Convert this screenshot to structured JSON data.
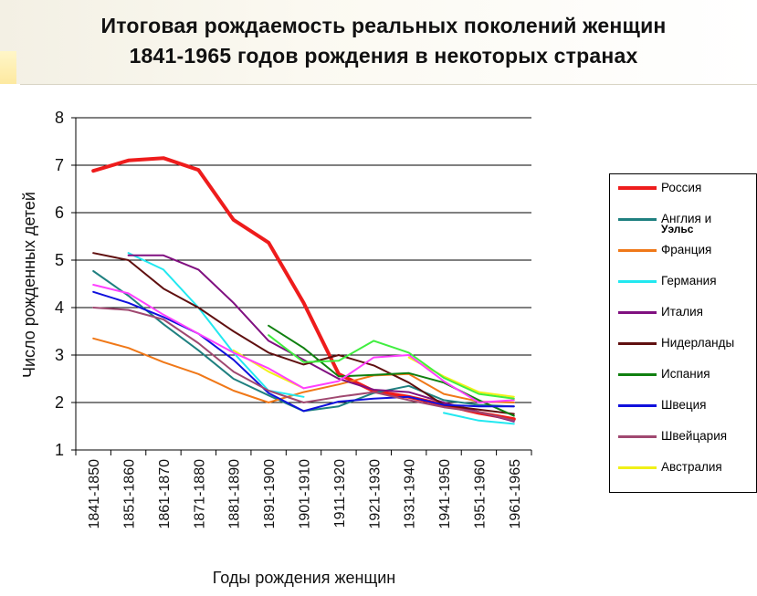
{
  "title": {
    "line1": "Итоговая рождаемость реальных поколений женщин",
    "line2": "1841-1965 годов рождения в некоторых странах"
  },
  "chart_data": {
    "type": "line",
    "title": "Итоговая рождаемость реальных поколений женщин 1841-1965 годов рождения в некоторых странах",
    "xlabel": "Годы рождения женщин",
    "ylabel": "Число рожденных детей",
    "ylim": [
      1,
      8
    ],
    "yticks": [
      1,
      2,
      3,
      4,
      5,
      6,
      7,
      8
    ],
    "grid": true,
    "legend_position": "right",
    "categories": [
      "1841-1850",
      "1851-1860",
      "1861-1870",
      "1871-1880",
      "1881-1890",
      "1891-1900",
      "1901-1910",
      "1911-1920",
      "1921-1930",
      "1931-1940",
      "1941-1950",
      "1951-1960",
      "1961-1965"
    ],
    "series": [
      {
        "name": "Россия",
        "color": "#ee1c1c",
        "width": 4,
        "values": [
          6.88,
          7.1,
          7.15,
          6.9,
          5.85,
          5.37,
          4.1,
          2.6,
          2.24,
          2.12,
          1.95,
          1.78,
          1.65
        ]
      },
      {
        "name": "Англия и",
        "name2": "Уэльс",
        "color": "#1f8080",
        "width": 2,
        "values": [
          4.77,
          4.25,
          3.65,
          3.1,
          2.5,
          2.15,
          1.82,
          1.92,
          2.2,
          2.35,
          2.05,
          1.95,
          1.92
        ]
      },
      {
        "name": "Франция",
        "color": "#f07818",
        "width": 2,
        "values": [
          3.35,
          3.15,
          2.85,
          2.6,
          2.25,
          2.0,
          2.22,
          2.38,
          2.57,
          2.6,
          2.18,
          2.02,
          2.0
        ]
      },
      {
        "name": "Германия",
        "color": "#22e8f0",
        "width": 2,
        "values": [
          null,
          5.15,
          4.8,
          4.0,
          3.05,
          2.25,
          2.12,
          null,
          null,
          null,
          1.78,
          1.62,
          1.55
        ]
      },
      {
        "name": "Италия",
        "color": "#801080",
        "width": 2,
        "values": [
          null,
          5.1,
          5.1,
          4.8,
          4.1,
          3.3,
          2.9,
          2.5,
          2.27,
          2.22,
          2.0,
          1.8,
          1.6
        ]
      },
      {
        "name": "Нидерланды",
        "color": "#601010",
        "width": 2,
        "values": [
          5.15,
          5.0,
          4.4,
          4.0,
          3.5,
          3.05,
          2.8,
          3.0,
          2.78,
          2.42,
          1.95,
          1.85,
          1.76
        ]
      },
      {
        "name": "Испания",
        "color": "#108010",
        "width": 2,
        "values": [
          null,
          null,
          null,
          null,
          null,
          3.62,
          3.15,
          2.55,
          2.58,
          2.62,
          2.42,
          2.05,
          1.72
        ]
      },
      {
        "name": "Швеция",
        "color": "#1010dd",
        "width": 2,
        "values": [
          4.33,
          4.1,
          3.8,
          3.45,
          2.9,
          2.2,
          1.82,
          2.02,
          2.08,
          2.12,
          1.95,
          1.92,
          1.92
        ]
      },
      {
        "name": "Швейцария",
        "color": "#a04870",
        "width": 2,
        "values": [
          4.0,
          3.95,
          3.75,
          3.25,
          2.65,
          2.25,
          2.0,
          2.12,
          2.22,
          2.05,
          1.9,
          1.8,
          1.62
        ]
      },
      {
        "name": "Австралия",
        "color": "#f0f018",
        "width": 2,
        "values": [
          null,
          null,
          null,
          null,
          3.1,
          2.65,
          2.3,
          null,
          null,
          2.95,
          2.55,
          2.22,
          2.12
        ]
      },
      {
        "name": "",
        "color": "#ff40ff",
        "width": 2,
        "values": [
          4.48,
          4.3,
          3.85,
          3.45,
          3.05,
          2.72,
          2.3,
          2.45,
          2.95,
          3.0,
          2.45,
          2.0,
          2.05
        ]
      },
      {
        "name": "",
        "color": "#40ee40",
        "width": 2,
        "values": [
          null,
          null,
          null,
          null,
          null,
          3.42,
          2.85,
          2.88,
          3.3,
          3.05,
          2.52,
          2.18,
          2.08
        ]
      }
    ]
  }
}
